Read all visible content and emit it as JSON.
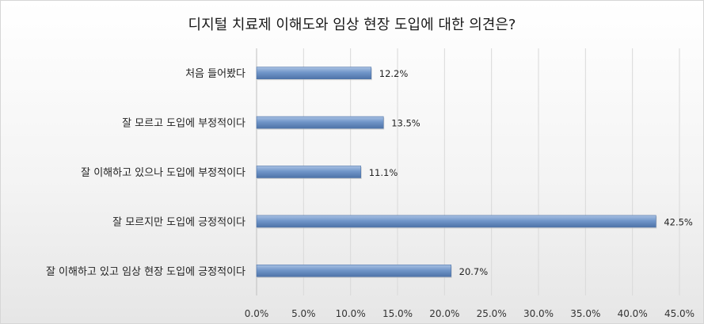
{
  "chart_data": {
    "type": "bar",
    "orientation": "horizontal",
    "title": "디지털 치료제 이해도와 임상 현장 도입에 대한 의견은?",
    "categories": [
      "처음 들어봤다",
      "잘 모르고 도입에 부정적이다",
      "잘 이해하고 있으나 도입에 부정적이다",
      "잘 모르지만 도입에 긍정적이다",
      "잘 이해하고 있고 임상 현장 도입에 긍정적이다"
    ],
    "values": [
      12.2,
      13.5,
      11.1,
      42.5,
      20.7
    ],
    "value_labels": [
      "12.2%",
      "13.5%",
      "11.1%",
      "42.5%",
      "20.7%"
    ],
    "x_ticks": [
      "0.0%",
      "5.0%",
      "10.0%",
      "15.0%",
      "20.0%",
      "25.0%",
      "30.0%",
      "35.0%",
      "40.0%",
      "45.0%"
    ],
    "xlim": [
      0,
      45
    ],
    "xlabel": "",
    "ylabel": "",
    "grid": true,
    "legend": "none",
    "colors": {
      "bar": "#6f93c6",
      "bar_dark": "#4e73a8",
      "grid": "#d9d9d9"
    }
  }
}
